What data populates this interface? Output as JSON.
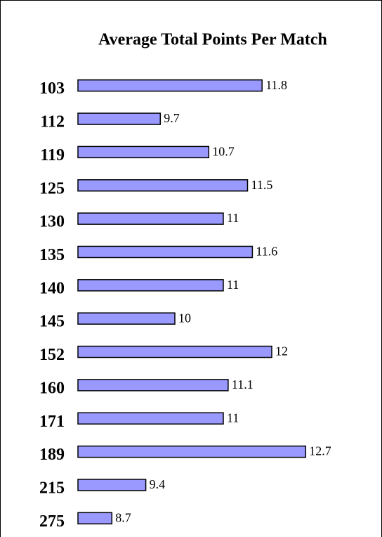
{
  "chart_data": {
    "type": "bar",
    "orientation": "horizontal",
    "title": "Average Total Points Per Match",
    "categories": [
      "103",
      "112",
      "119",
      "125",
      "130",
      "135",
      "140",
      "145",
      "152",
      "160",
      "171",
      "189",
      "215",
      "275"
    ],
    "values": [
      11.8,
      9.7,
      10.7,
      11.5,
      11,
      11.6,
      11,
      10,
      12,
      11.1,
      11,
      12.7,
      9.4,
      8.7
    ],
    "color": "#9999ff",
    "xlim": [
      8,
      14
    ]
  }
}
